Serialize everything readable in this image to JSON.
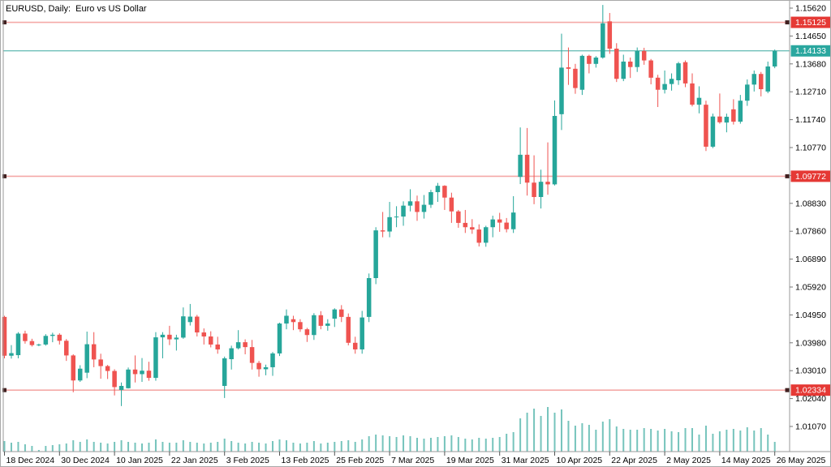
{
  "window": {
    "title_bar": "EURUSD, Daily:  Euro vs US Dollar"
  },
  "chart_data": {
    "type": "candlestick",
    "symbol": "EURUSD",
    "timeframe": "Daily",
    "description": "Euro vs US Dollar",
    "title": "EURUSD, Daily:  Euro vs US Dollar",
    "colors": {
      "background": "#ffffff",
      "bull": "#26a69a",
      "bear": "#ef5350",
      "volume": "#76c4bc",
      "level_line": "#f4a9a7",
      "level_marker": "#402020",
      "level_tag_bg": "#e53935",
      "bid_line": "#3aa99f",
      "bid_tag_bg": "#2aa79f",
      "tag_text": "#ffffff",
      "axis_line": "#9a9a9a",
      "axis_text": "#000000"
    },
    "price_axis": {
      "side": "right",
      "top_price": 1.1562,
      "bottom_price": 1.0107,
      "tick_step": 0.0097,
      "ticks": [
        "1.15620",
        "1.14650",
        "1.13680",
        "1.12710",
        "1.11740",
        "1.10770",
        "1.09800",
        "1.08830",
        "1.07860",
        "1.06890",
        "1.05920",
        "1.04950",
        "1.03980",
        "1.03010",
        "1.02040",
        "1.01070"
      ]
    },
    "time_axis": {
      "labels": [
        "18 Dec 2024",
        "30 Dec 2024",
        "10 Jan 2025",
        "22 Jan 2025",
        "3 Feb 2025",
        "13 Feb 2025",
        "25 Feb 2025",
        "7 Mar 2025",
        "19 Mar 2025",
        "31 Mar 2025",
        "10 Apr 2025",
        "22 Apr 2025",
        "2 May 2025",
        "14 May 2025",
        "26 May 2025"
      ],
      "bars_per_label": 8
    },
    "price_lines": [
      {
        "label": "1.15125",
        "value": 1.15125,
        "kind": "level",
        "tag_bg": "#e53935"
      },
      {
        "label": "1.14133",
        "value": 1.14133,
        "kind": "bid",
        "tag_bg": "#2aa79f"
      },
      {
        "label": "1.09772",
        "value": 1.09772,
        "kind": "level",
        "tag_bg": "#e53935"
      },
      {
        "label": "1.02334",
        "value": 1.02334,
        "kind": "level",
        "tag_bg": "#e53935"
      }
    ],
    "current_price": "1.14133",
    "columns": [
      "open",
      "high",
      "low",
      "close",
      "volume_rel"
    ],
    "candles": [
      [
        1.0488,
        1.0492,
        1.0344,
        1.0353,
        13
      ],
      [
        1.0353,
        1.039,
        1.0343,
        1.0362,
        11
      ],
      [
        1.0355,
        1.0435,
        1.0344,
        1.043,
        12
      ],
      [
        1.043,
        1.044,
        1.0395,
        1.0404,
        9
      ],
      [
        1.0404,
        1.0412,
        1.0385,
        1.039,
        7
      ],
      [
        1.039,
        1.0395,
        1.0386,
        1.0392,
        2
      ],
      [
        1.0392,
        1.0428,
        1.0388,
        1.0422,
        7
      ],
      [
        1.0422,
        1.0433,
        1.04,
        1.0426,
        8
      ],
      [
        1.0426,
        1.0431,
        1.0392,
        1.0405,
        9
      ],
      [
        1.0405,
        1.0411,
        1.0335,
        1.0354,
        10
      ],
      [
        1.0354,
        1.0358,
        1.0226,
        1.0267,
        14
      ],
      [
        1.0267,
        1.032,
        1.0262,
        1.0308,
        12
      ],
      [
        1.0294,
        1.0437,
        1.0275,
        1.0393,
        15
      ],
      [
        1.0393,
        1.0435,
        1.0313,
        1.034,
        12
      ],
      [
        1.034,
        1.036,
        1.0273,
        1.0317,
        11
      ],
      [
        1.0317,
        1.0321,
        1.0272,
        1.03,
        10
      ],
      [
        1.03,
        1.0306,
        1.0215,
        1.0244,
        12
      ],
      [
        1.0234,
        1.026,
        1.0178,
        1.0248,
        14
      ],
      [
        1.024,
        1.0312,
        1.0239,
        1.0305,
        12
      ],
      [
        1.0305,
        1.0354,
        1.026,
        1.0289,
        11
      ],
      [
        1.0289,
        1.0345,
        1.0262,
        1.0301,
        10
      ],
      [
        1.0301,
        1.0332,
        1.0266,
        1.0276,
        11
      ],
      [
        1.0276,
        1.0435,
        1.0266,
        1.0417,
        15
      ],
      [
        1.0417,
        1.0435,
        1.0344,
        1.0426,
        12
      ],
      [
        1.0426,
        1.0457,
        1.039,
        1.041,
        11
      ],
      [
        1.041,
        1.0426,
        1.0371,
        1.0416,
        11
      ],
      [
        1.0416,
        1.0521,
        1.0412,
        1.049,
        14
      ],
      [
        1.047,
        1.0533,
        1.0458,
        1.0489,
        12
      ],
      [
        1.0489,
        1.0495,
        1.042,
        1.0434,
        11
      ],
      [
        1.0434,
        1.0448,
        1.0392,
        1.042,
        10
      ],
      [
        1.042,
        1.0438,
        1.0382,
        1.0392,
        11
      ],
      [
        1.0392,
        1.0419,
        1.036,
        1.0375,
        12
      ],
      [
        1.0248,
        1.035,
        1.0206,
        1.0344,
        16
      ],
      [
        1.0341,
        1.0388,
        1.0305,
        1.0379,
        13
      ],
      [
        1.0379,
        1.0442,
        1.0375,
        1.04,
        11
      ],
      [
        1.04,
        1.041,
        1.0358,
        1.0383,
        10
      ],
      [
        1.0383,
        1.0408,
        1.0305,
        1.0328,
        12
      ],
      [
        1.0328,
        1.0335,
        1.028,
        1.0306,
        11
      ],
      [
        1.0306,
        1.0322,
        1.0285,
        1.0313,
        10
      ],
      [
        1.0313,
        1.0366,
        1.0283,
        1.0361,
        13
      ],
      [
        1.0361,
        1.0468,
        1.0352,
        1.0465,
        15
      ],
      [
        1.0465,
        1.0514,
        1.0445,
        1.0492,
        14
      ],
      [
        1.048,
        1.0492,
        1.0442,
        1.047,
        11
      ],
      [
        1.047,
        1.048,
        1.0436,
        1.0445,
        10
      ],
      [
        1.0445,
        1.045,
        1.0401,
        1.0425,
        11
      ],
      [
        1.0425,
        1.0501,
        1.0408,
        1.0494,
        13
      ],
      [
        1.0494,
        1.0508,
        1.0445,
        1.0457,
        10
      ],
      [
        1.0457,
        1.048,
        1.044,
        1.0465,
        11
      ],
      [
        1.0482,
        1.0518,
        1.0453,
        1.0514,
        12
      ],
      [
        1.0514,
        1.0529,
        1.047,
        1.0488,
        13
      ],
      [
        1.0488,
        1.05,
        1.0389,
        1.0398,
        14
      ],
      [
        1.0398,
        1.0419,
        1.036,
        1.0375,
        12
      ],
      [
        1.0375,
        1.0509,
        1.036,
        1.0486,
        15
      ],
      [
        1.0488,
        1.0639,
        1.047,
        1.0623,
        19
      ],
      [
        1.0623,
        1.08,
        1.0602,
        1.0789,
        21
      ],
      [
        1.0789,
        1.0853,
        1.0765,
        1.0785,
        20
      ],
      [
        1.0785,
        1.0888,
        1.0765,
        1.0835,
        19
      ],
      [
        1.0835,
        1.0873,
        1.08,
        1.0837,
        18
      ],
      [
        1.0837,
        1.089,
        1.0805,
        1.0875,
        20
      ],
      [
        1.0875,
        1.0932,
        1.0855,
        1.089,
        19
      ],
      [
        1.089,
        1.091,
        1.0822,
        1.0853,
        17
      ],
      [
        1.0853,
        1.0912,
        1.083,
        1.0878,
        16
      ],
      [
        1.0878,
        1.093,
        1.0867,
        1.0922,
        17
      ],
      [
        1.0922,
        1.0954,
        1.0888,
        1.0944,
        18
      ],
      [
        1.0944,
        1.0946,
        1.086,
        1.0903,
        19
      ],
      [
        1.0903,
        1.092,
        1.0815,
        1.0855,
        20
      ],
      [
        1.0855,
        1.086,
        1.0798,
        1.0815,
        18
      ],
      [
        1.0815,
        1.086,
        1.078,
        1.08,
        16
      ],
      [
        1.08,
        1.0828,
        1.0777,
        1.0792,
        15
      ],
      [
        1.0792,
        1.081,
        1.0733,
        1.0746,
        17
      ],
      [
        1.0746,
        1.0805,
        1.0732,
        1.08,
        16
      ],
      [
        1.08,
        1.084,
        1.0765,
        1.0827,
        17
      ],
      [
        1.0827,
        1.085,
        1.0784,
        1.0816,
        18
      ],
      [
        1.0816,
        1.0832,
        1.0782,
        1.0793,
        22
      ],
      [
        1.0793,
        1.0908,
        1.078,
        1.0851,
        24
      ],
      [
        1.0975,
        1.1147,
        1.095,
        1.1052,
        41
      ],
      [
        1.1052,
        1.1145,
        1.091,
        1.0955,
        48
      ],
      [
        1.0955,
        1.105,
        1.088,
        1.0905,
        53
      ],
      [
        1.0905,
        1.1,
        1.0865,
        1.0958,
        44
      ],
      [
        1.0958,
        1.1095,
        1.0913,
        1.0949,
        55
      ],
      [
        1.0949,
        1.1241,
        1.0945,
        1.1187,
        48
      ],
      [
        1.1193,
        1.1473,
        1.1138,
        1.1355,
        52
      ],
      [
        1.1356,
        1.1425,
        1.1295,
        1.1351,
        38
      ],
      [
        1.1351,
        1.1368,
        1.1264,
        1.1284,
        32
      ],
      [
        1.1278,
        1.14,
        1.126,
        1.1396,
        35
      ],
      [
        1.1396,
        1.14,
        1.1335,
        1.1368,
        33
      ],
      [
        1.1368,
        1.1395,
        1.1355,
        1.139,
        27
      ],
      [
        1.139,
        1.1573,
        1.1386,
        1.1509,
        37
      ],
      [
        1.1516,
        1.1545,
        1.1403,
        1.1421,
        40
      ],
      [
        1.1421,
        1.144,
        1.1305,
        1.1316,
        31
      ],
      [
        1.1316,
        1.14,
        1.1308,
        1.1376,
        28
      ],
      [
        1.1376,
        1.139,
        1.1319,
        1.1357,
        27
      ],
      [
        1.1357,
        1.1425,
        1.134,
        1.1413,
        27
      ],
      [
        1.1413,
        1.1424,
        1.1365,
        1.138,
        29
      ],
      [
        1.138,
        1.1385,
        1.1297,
        1.132,
        28
      ],
      [
        1.132,
        1.133,
        1.1218,
        1.1278,
        26
      ],
      [
        1.1278,
        1.1345,
        1.1265,
        1.1298,
        28
      ],
      [
        1.1298,
        1.1335,
        1.1275,
        1.1316,
        25
      ],
      [
        1.1311,
        1.1375,
        1.1295,
        1.137,
        24
      ],
      [
        1.1374,
        1.138,
        1.1287,
        1.13,
        29
      ],
      [
        1.13,
        1.1335,
        1.122,
        1.1226,
        29
      ],
      [
        1.1226,
        1.129,
        1.1196,
        1.125,
        21
      ],
      [
        1.1226,
        1.124,
        1.1065,
        1.108,
        32
      ],
      [
        1.108,
        1.1195,
        1.1075,
        1.1185,
        22
      ],
      [
        1.1185,
        1.1265,
        1.116,
        1.1165,
        25
      ],
      [
        1.1164,
        1.1195,
        1.113,
        1.1184,
        27
      ],
      [
        1.121,
        1.1245,
        1.1157,
        1.1167,
        28
      ],
      [
        1.1167,
        1.126,
        1.116,
        1.124,
        26
      ],
      [
        1.124,
        1.1314,
        1.1222,
        1.1296,
        30
      ],
      [
        1.1296,
        1.1345,
        1.1272,
        1.1333,
        26
      ],
      [
        1.1333,
        1.134,
        1.1255,
        1.128,
        29
      ],
      [
        1.1272,
        1.1376,
        1.1266,
        1.1359,
        21
      ],
      [
        1.1359,
        1.1418,
        1.1353,
        1.14133,
        12
      ]
    ]
  }
}
